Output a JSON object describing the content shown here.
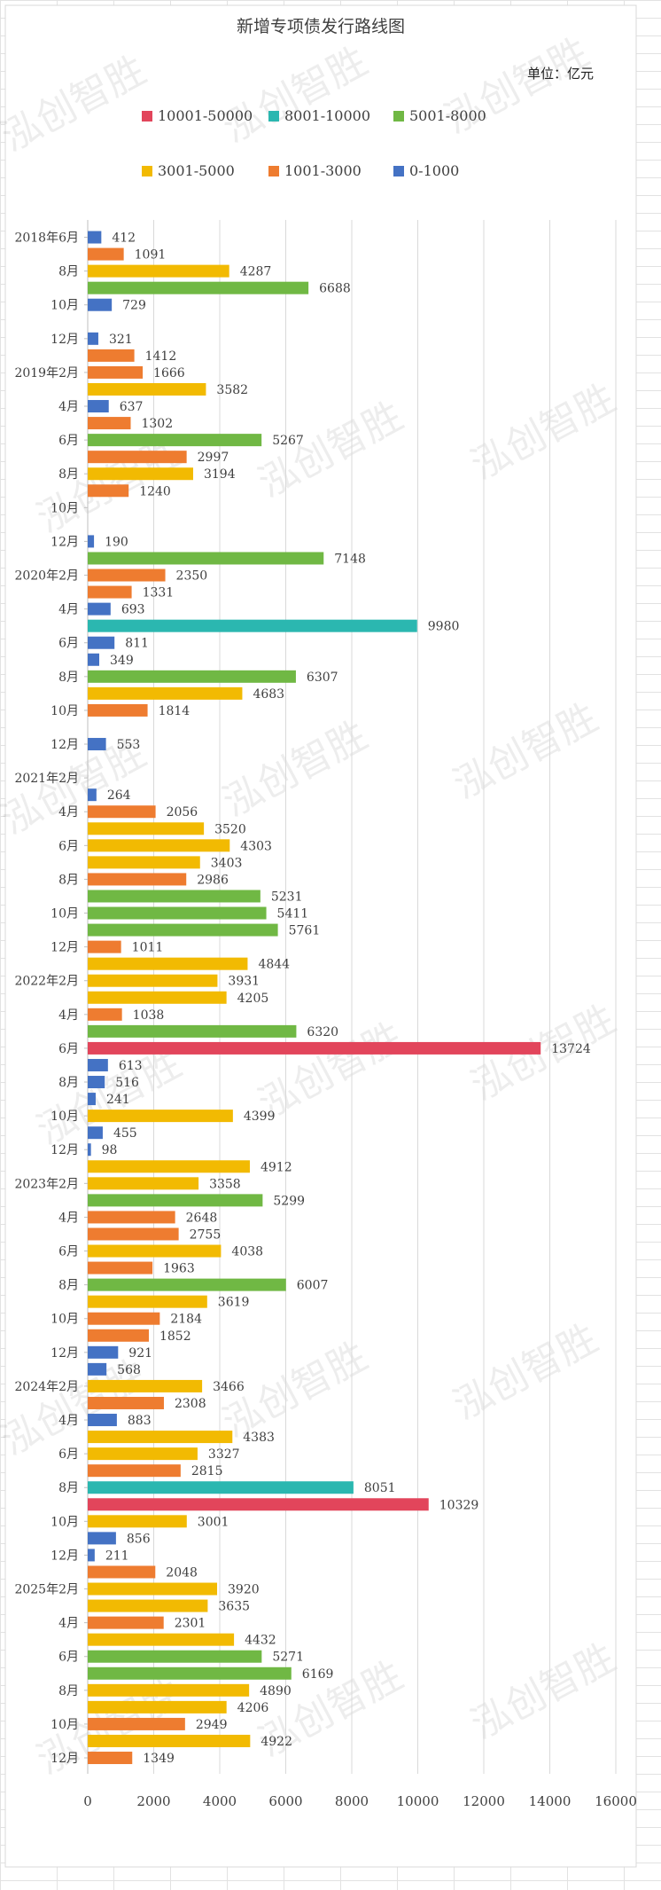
{
  "chart_data": {
    "type": "bar",
    "orientation": "horizontal",
    "title": "新增专项债发行路线图",
    "unit_note": "单位：亿元",
    "watermark": "泓创智胜",
    "xlim": [
      0,
      16000
    ],
    "x_ticks": [
      0,
      2000,
      4000,
      6000,
      8000,
      10000,
      12000,
      14000,
      16000
    ],
    "grid": "vertical gridlines",
    "legend_position": "top",
    "legend": [
      {
        "label": "10001-50000",
        "color": "#E2455B"
      },
      {
        "label": "8001-10000",
        "color": "#2BB7B0"
      },
      {
        "label": "5001-8000",
        "color": "#70B844"
      },
      {
        "label": "3001-5000",
        "color": "#F2BA02"
      },
      {
        "label": "1001-3000",
        "color": "#EE7C30"
      },
      {
        "label": "0-1000",
        "color": "#4472C4"
      }
    ],
    "bars": [
      {
        "value": 412,
        "band": "0-1000",
        "label": "2018年6月"
      },
      {
        "value": 1091,
        "band": "1001-3000",
        "label": ""
      },
      {
        "value": 4287,
        "band": "3001-5000",
        "label": "8月"
      },
      {
        "value": 6688,
        "band": "5001-8000",
        "label": ""
      },
      {
        "value": 729,
        "band": "0-1000",
        "label": "10月"
      },
      {
        "value": null,
        "band": "",
        "label": ""
      },
      {
        "value": 321,
        "band": "0-1000",
        "label": "12月"
      },
      {
        "value": 1412,
        "band": "1001-3000",
        "label": ""
      },
      {
        "value": 1666,
        "band": "1001-3000",
        "label": "2019年2月"
      },
      {
        "value": 3582,
        "band": "3001-5000",
        "label": ""
      },
      {
        "value": 637,
        "band": "0-1000",
        "label": "4月"
      },
      {
        "value": 1302,
        "band": "1001-3000",
        "label": ""
      },
      {
        "value": 5267,
        "band": "5001-8000",
        "label": "6月"
      },
      {
        "value": 2997,
        "band": "1001-3000",
        "label": ""
      },
      {
        "value": 3194,
        "band": "3001-5000",
        "label": "8月"
      },
      {
        "value": 1240,
        "band": "1001-3000",
        "label": ""
      },
      {
        "value": null,
        "band": "",
        "label": "10月"
      },
      {
        "value": null,
        "band": "",
        "label": ""
      },
      {
        "value": 190,
        "band": "0-1000",
        "label": "12月"
      },
      {
        "value": 7148,
        "band": "5001-8000",
        "label": ""
      },
      {
        "value": 2350,
        "band": "1001-3000",
        "label": "2020年2月"
      },
      {
        "value": 1331,
        "band": "1001-3000",
        "label": ""
      },
      {
        "value": 693,
        "band": "0-1000",
        "label": "4月"
      },
      {
        "value": 9980,
        "band": "8001-10000",
        "label": ""
      },
      {
        "value": 811,
        "band": "0-1000",
        "label": "6月"
      },
      {
        "value": 349,
        "band": "0-1000",
        "label": ""
      },
      {
        "value": 6307,
        "band": "5001-8000",
        "label": "8月"
      },
      {
        "value": 4683,
        "band": "3001-5000",
        "label": ""
      },
      {
        "value": 1814,
        "band": "1001-3000",
        "label": "10月"
      },
      {
        "value": null,
        "band": "",
        "label": ""
      },
      {
        "value": 553,
        "band": "0-1000",
        "label": "12月"
      },
      {
        "value": null,
        "band": "",
        "label": ""
      },
      {
        "value": null,
        "band": "",
        "label": "2021年2月"
      },
      {
        "value": 264,
        "band": "0-1000",
        "label": ""
      },
      {
        "value": 2056,
        "band": "1001-3000",
        "label": "4月"
      },
      {
        "value": 3520,
        "band": "3001-5000",
        "label": ""
      },
      {
        "value": 4303,
        "band": "3001-5000",
        "label": "6月"
      },
      {
        "value": 3403,
        "band": "3001-5000",
        "label": ""
      },
      {
        "value": 2986,
        "band": "1001-3000",
        "label": "8月"
      },
      {
        "value": 5231,
        "band": "5001-8000",
        "label": ""
      },
      {
        "value": 5411,
        "band": "5001-8000",
        "label": "10月"
      },
      {
        "value": 5761,
        "band": "5001-8000",
        "label": ""
      },
      {
        "value": 1011,
        "band": "1001-3000",
        "label": "12月"
      },
      {
        "value": 4844,
        "band": "3001-5000",
        "label": ""
      },
      {
        "value": 3931,
        "band": "3001-5000",
        "label": "2022年2月"
      },
      {
        "value": 4205,
        "band": "3001-5000",
        "label": ""
      },
      {
        "value": 1038,
        "band": "1001-3000",
        "label": "4月"
      },
      {
        "value": 6320,
        "band": "5001-8000",
        "label": ""
      },
      {
        "value": 13724,
        "band": "10001-50000",
        "label": "6月"
      },
      {
        "value": 613,
        "band": "0-1000",
        "label": ""
      },
      {
        "value": 516,
        "band": "0-1000",
        "label": "8月"
      },
      {
        "value": 241,
        "band": "0-1000",
        "label": ""
      },
      {
        "value": 4399,
        "band": "3001-5000",
        "label": "10月"
      },
      {
        "value": 455,
        "band": "0-1000",
        "label": ""
      },
      {
        "value": 98,
        "band": "0-1000",
        "label": "12月"
      },
      {
        "value": 4912,
        "band": "3001-5000",
        "label": ""
      },
      {
        "value": 3358,
        "band": "3001-5000",
        "label": "2023年2月"
      },
      {
        "value": 5299,
        "band": "5001-8000",
        "label": ""
      },
      {
        "value": 2648,
        "band": "1001-3000",
        "label": "4月"
      },
      {
        "value": 2755,
        "band": "1001-3000",
        "label": ""
      },
      {
        "value": 4038,
        "band": "3001-5000",
        "label": "6月"
      },
      {
        "value": 1963,
        "band": "1001-3000",
        "label": ""
      },
      {
        "value": 6007,
        "band": "5001-8000",
        "label": "8月"
      },
      {
        "value": 3619,
        "band": "3001-5000",
        "label": ""
      },
      {
        "value": 2184,
        "band": "1001-3000",
        "label": "10月"
      },
      {
        "value": 1852,
        "band": "1001-3000",
        "label": ""
      },
      {
        "value": 921,
        "band": "0-1000",
        "label": "12月"
      },
      {
        "value": 568,
        "band": "0-1000",
        "label": ""
      },
      {
        "value": 3466,
        "band": "3001-5000",
        "label": "2024年2月"
      },
      {
        "value": 2308,
        "band": "1001-3000",
        "label": ""
      },
      {
        "value": 883,
        "band": "0-1000",
        "label": "4月"
      },
      {
        "value": 4383,
        "band": "3001-5000",
        "label": ""
      },
      {
        "value": 3327,
        "band": "3001-5000",
        "label": "6月"
      },
      {
        "value": 2815,
        "band": "1001-3000",
        "label": ""
      },
      {
        "value": 8051,
        "band": "8001-10000",
        "label": "8月"
      },
      {
        "value": 10329,
        "band": "10001-50000",
        "label": ""
      },
      {
        "value": 3001,
        "band": "3001-5000",
        "label": "10月"
      },
      {
        "value": 856,
        "band": "0-1000",
        "label": ""
      },
      {
        "value": 211,
        "band": "0-1000",
        "label": "12月"
      },
      {
        "value": 2048,
        "band": "1001-3000",
        "label": ""
      },
      {
        "value": 3920,
        "band": "3001-5000",
        "label": "2025年2月"
      },
      {
        "value": 3635,
        "band": "3001-5000",
        "label": ""
      },
      {
        "value": 2301,
        "band": "1001-3000",
        "label": "4月"
      },
      {
        "value": 4432,
        "band": "3001-5000",
        "label": ""
      },
      {
        "value": 5271,
        "band": "5001-8000",
        "label": "6月"
      },
      {
        "value": 6169,
        "band": "5001-8000",
        "label": ""
      },
      {
        "value": 4890,
        "band": "3001-5000",
        "label": "8月"
      },
      {
        "value": 4206,
        "band": "3001-5000",
        "label": ""
      },
      {
        "value": 2949,
        "band": "1001-3000",
        "label": "10月"
      },
      {
        "value": 4922,
        "band": "3001-5000",
        "label": ""
      },
      {
        "value": 1349,
        "band": "1001-3000",
        "label": "12月"
      }
    ]
  }
}
